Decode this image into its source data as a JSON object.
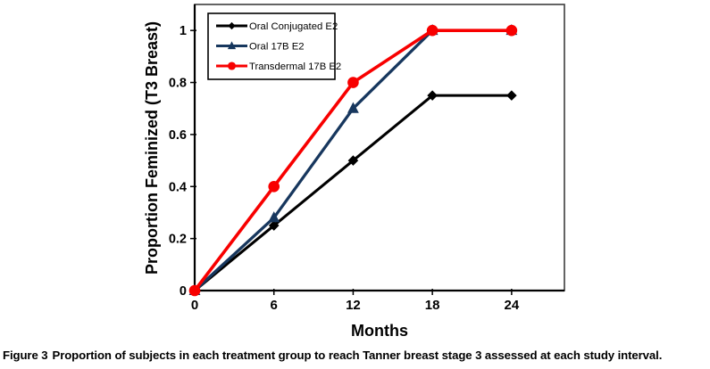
{
  "figure": {
    "caption_label": "Figure 3",
    "caption_text": "Proportion of subjects in each treatment group to reach Tanner breast stage 3 assessed at each study interval."
  },
  "chart_data": {
    "type": "line",
    "title": "",
    "xlabel": "Months",
    "ylabel": "Proportion Feminized (T3 Breast)",
    "x": [
      0,
      6,
      12,
      18,
      24
    ],
    "series": [
      {
        "name": "Oral Conjugated E2",
        "color": "#000000",
        "marker": "diamond",
        "values": [
          0,
          0.25,
          0.5,
          0.75,
          0.75
        ]
      },
      {
        "name": "Oral 17B E2",
        "color": "#17375E",
        "marker": "triangle",
        "values": [
          0,
          0.28,
          0.7,
          1,
          1
        ]
      },
      {
        "name": "Transdermal 17B E2",
        "color": "#F80000",
        "marker": "circle",
        "values": [
          0,
          0.4,
          0.8,
          1,
          1
        ]
      }
    ],
    "xticks": [
      0,
      6,
      12,
      18,
      24
    ],
    "xtick_labels": [
      "0",
      "6",
      "12",
      "18",
      "24"
    ],
    "yticks": [
      0,
      0.2,
      0.4,
      0.6,
      0.8,
      1
    ],
    "ytick_labels": [
      "0",
      "0.2",
      "0.4",
      "0.6",
      "0.8",
      "1"
    ],
    "xlim": [
      0,
      28
    ],
    "ylim": [
      0,
      1.1
    ],
    "grid": false,
    "legend_position": "top-left"
  },
  "colors": {
    "background": "#ffffff",
    "plot_border": "#3d3d3d",
    "axis": "#000000",
    "legend_border": "#000000"
  }
}
